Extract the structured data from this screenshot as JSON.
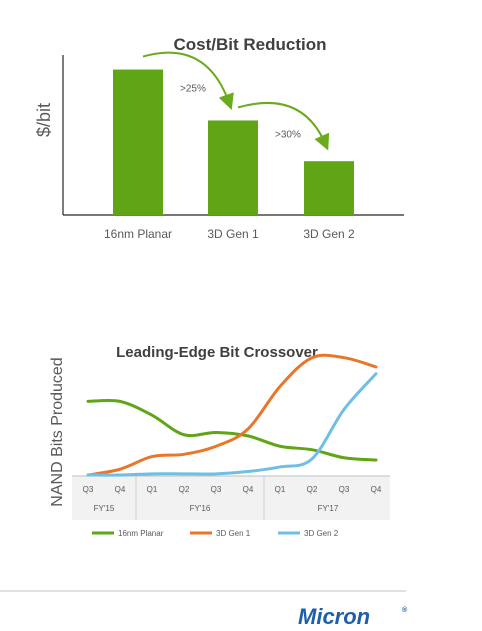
{
  "chart_data": [
    {
      "type": "bar",
      "title": "Cost/Bit Reduction",
      "ylabel": "$/bit",
      "categories": [
        "16nm Planar",
        "3D Gen 1",
        "3D Gen 2"
      ],
      "values": [
        1.0,
        0.65,
        0.37
      ],
      "ylim": [
        0,
        1.1
      ],
      "annotations": [
        ">25%",
        ">30%"
      ],
      "color": "#5fa516",
      "arrow_color": "#6aab1c"
    },
    {
      "type": "line",
      "title": "Leading-Edge Bit Crossover",
      "ylabel": "NAND Bits Produced",
      "x": [
        "Q3",
        "Q4",
        "Q1",
        "Q2",
        "Q3",
        "Q4",
        "Q1",
        "Q2",
        "Q3",
        "Q4"
      ],
      "fiscal_years": [
        {
          "label": "FY'15",
          "span": [
            0,
            1
          ]
        },
        {
          "label": "FY'16",
          "span": [
            2,
            5
          ]
        },
        {
          "label": "FY'17",
          "span": [
            6,
            9
          ]
        }
      ],
      "ylim": [
        0,
        100
      ],
      "grid": false,
      "legend": "bottom",
      "series": [
        {
          "name": "16nm Planar",
          "color": "#5fa516",
          "values": [
            64,
            64,
            52,
            35,
            37,
            34,
            25,
            22,
            15,
            13
          ]
        },
        {
          "name": "3D Gen 1",
          "color": "#e8762b",
          "values": [
            0,
            5,
            16,
            18,
            25,
            40,
            77,
            102,
            102,
            94
          ]
        },
        {
          "name": "3D Gen 2",
          "color": "#6fbfe4",
          "values": [
            0,
            0,
            1,
            1,
            1,
            3,
            7,
            14,
            57,
            88
          ]
        }
      ]
    }
  ],
  "logo": {
    "text": "Micron",
    "mark": "®"
  }
}
